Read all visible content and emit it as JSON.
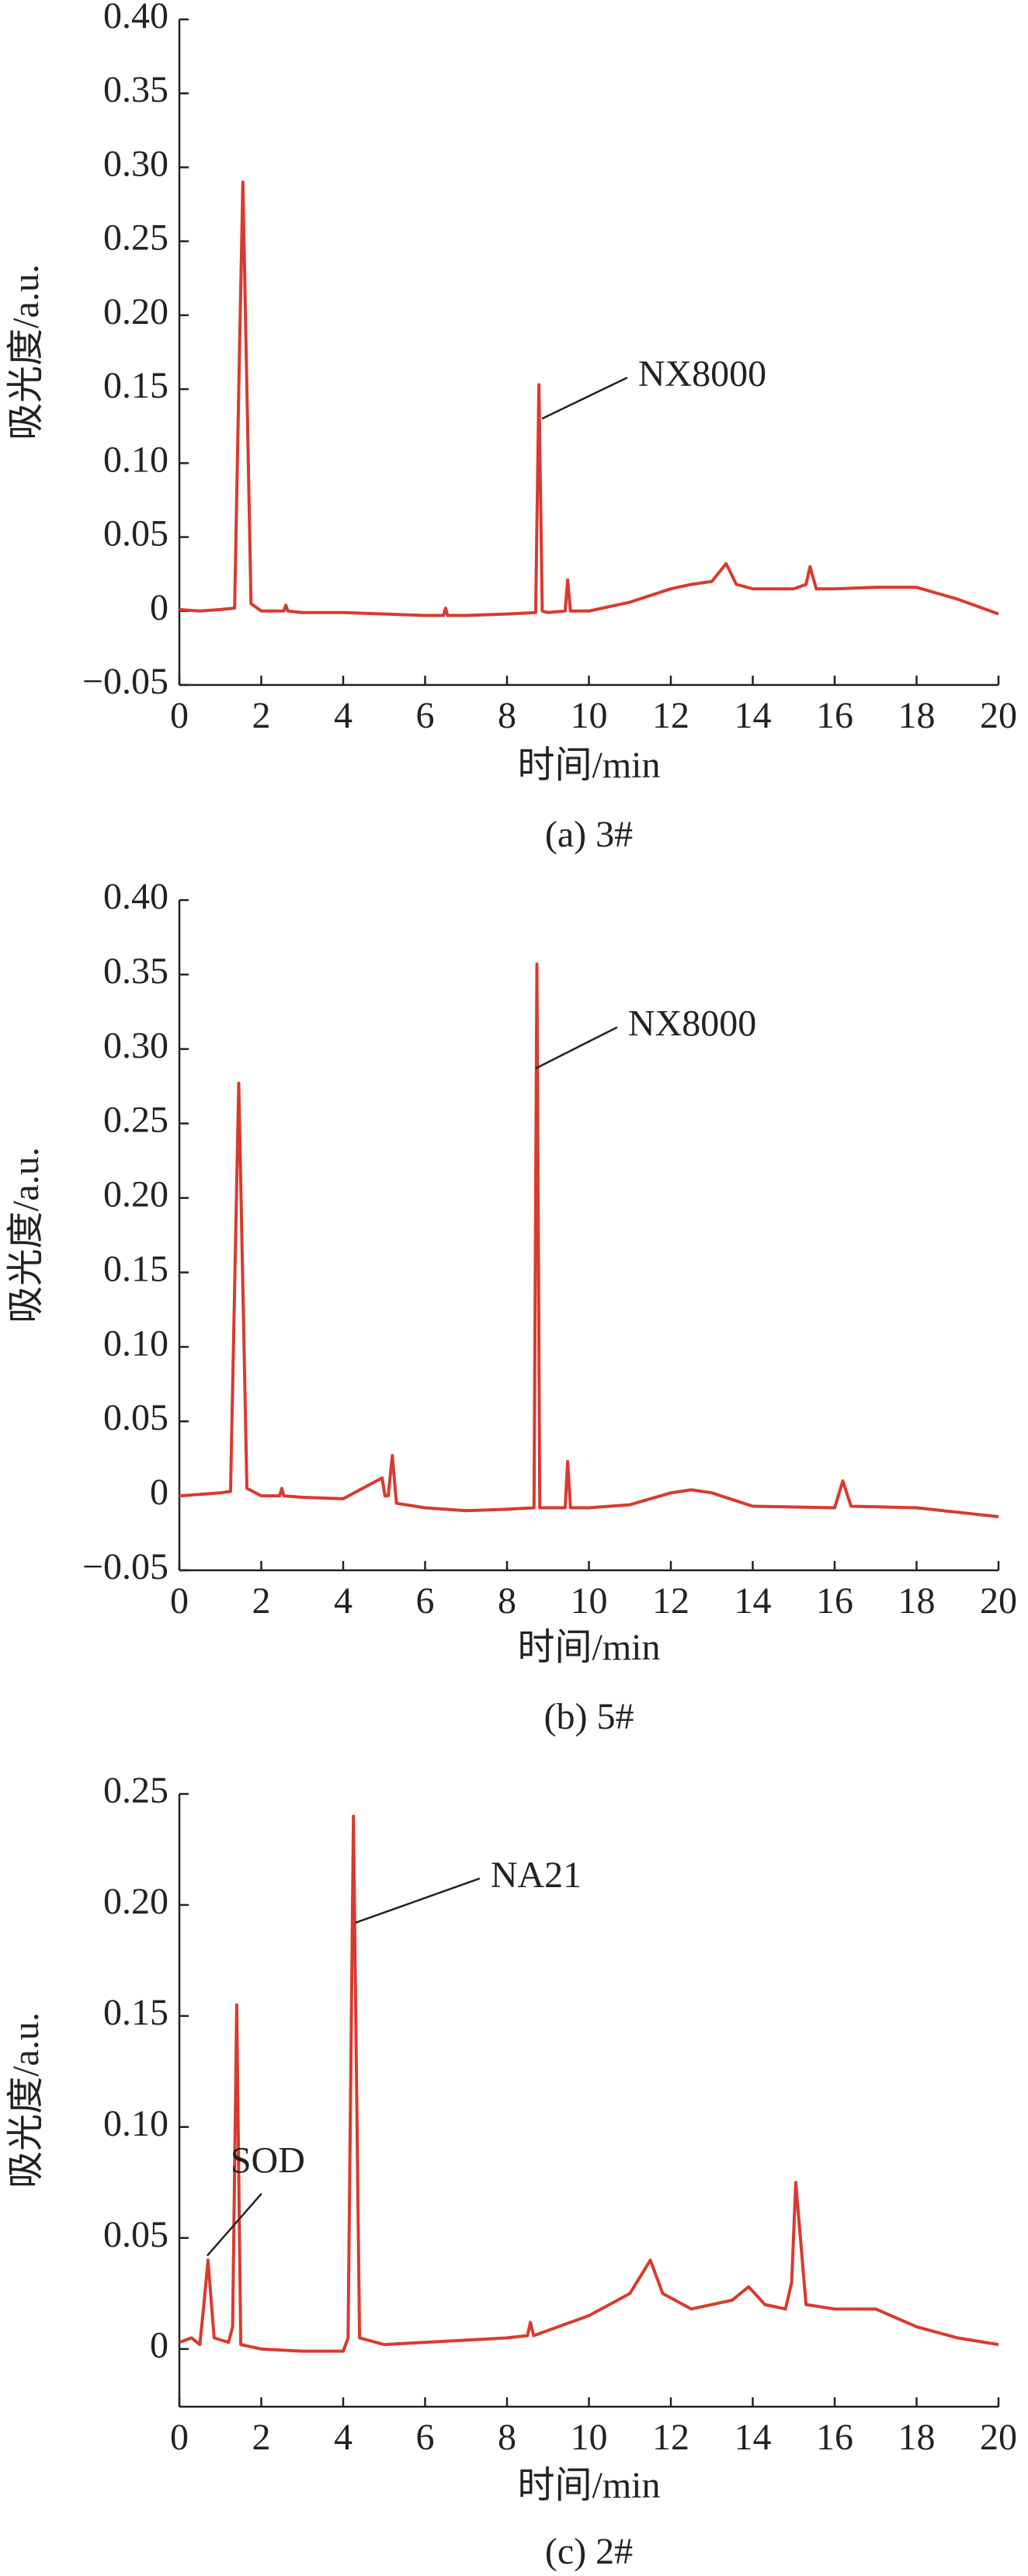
{
  "chart_data": [
    {
      "type": "line",
      "caption": "(a) 3#",
      "x_label": "时间/min",
      "y_label": "吸光度/a.u.",
      "color": "#d93a2f",
      "xlim": [
        0,
        20
      ],
      "xticks": [
        0,
        2,
        4,
        6,
        8,
        10,
        12,
        14,
        16,
        18,
        20
      ],
      "ylim": [
        -0.05,
        0.4
      ],
      "yticks": [
        {
          "value": -0.05,
          "label": "−0.05"
        },
        0,
        0.05,
        {
          "value": 0.1,
          "label": "0.10"
        },
        0.15,
        {
          "value": 0.2,
          "label": "0.20"
        },
        0.25,
        {
          "value": 0.3,
          "label": "0.30"
        },
        0.35,
        {
          "value": 0.4,
          "label": "0.40"
        }
      ],
      "x": [
        0,
        0.5,
        1,
        1.35,
        1.45,
        1.55,
        1.65,
        1.75,
        2,
        2.55,
        2.6,
        2.65,
        3,
        4,
        5,
        6,
        6.45,
        6.5,
        6.55,
        7,
        8,
        8.7,
        8.78,
        8.86,
        9,
        9.42,
        9.48,
        9.55,
        10,
        11,
        12,
        12.5,
        13,
        13.35,
        13.6,
        14,
        15,
        15.3,
        15.4,
        15.55,
        16,
        17,
        18,
        19,
        20
      ],
      "values": [
        0.001,
        0.0,
        0.001,
        0.002,
        0.15,
        0.29,
        0.15,
        0.005,
        0.0,
        0.0,
        0.004,
        0.0,
        -0.001,
        -0.001,
        -0.002,
        -0.003,
        -0.003,
        0.002,
        -0.003,
        -0.003,
        -0.002,
        -0.001,
        0.153,
        0.0,
        -0.001,
        0.0,
        0.021,
        0.0,
        0.0,
        0.006,
        0.015,
        0.018,
        0.02,
        0.032,
        0.018,
        0.015,
        0.015,
        0.018,
        0.03,
        0.015,
        0.015,
        0.016,
        0.016,
        0.008,
        -0.002
      ],
      "annotations": [
        {
          "text": "NX8000",
          "x": 8.85,
          "y": 0.13
        }
      ]
    },
    {
      "type": "line",
      "caption": "(b) 5#",
      "x_label": "时间/min",
      "y_label": "吸光度/a.u.",
      "color": "#d93a2f",
      "xlim": [
        0,
        20
      ],
      "xticks": [
        0,
        2,
        4,
        6,
        8,
        10,
        12,
        14,
        16,
        18,
        20
      ],
      "ylim": [
        -0.05,
        0.4
      ],
      "yticks": [
        {
          "value": -0.05,
          "label": "−0.05"
        },
        0,
        0.05,
        {
          "value": 0.1,
          "label": "0.10"
        },
        0.15,
        {
          "value": 0.2,
          "label": "0.20"
        },
        0.25,
        {
          "value": 0.3,
          "label": "0.30"
        },
        0.35,
        {
          "value": 0.4,
          "label": "0.40"
        }
      ],
      "x": [
        0,
        0.5,
        1,
        1.25,
        1.35,
        1.45,
        1.55,
        1.65,
        2,
        2.45,
        2.5,
        2.55,
        3,
        4,
        4.95,
        5.02,
        5.1,
        5.2,
        5.3,
        6,
        7,
        8,
        8.66,
        8.73,
        8.8,
        9,
        9.42,
        9.48,
        9.55,
        10,
        11,
        12,
        12.5,
        13,
        14,
        16,
        16.2,
        16.4,
        18,
        20
      ],
      "values": [
        0.0,
        0.001,
        0.002,
        0.003,
        0.14,
        0.277,
        0.14,
        0.005,
        0.0,
        0.0,
        0.005,
        0.0,
        -0.001,
        -0.002,
        0.012,
        0.0,
        0.0,
        0.027,
        -0.005,
        -0.008,
        -0.01,
        -0.009,
        -0.008,
        0.357,
        -0.008,
        -0.008,
        -0.008,
        0.023,
        -0.008,
        -0.008,
        -0.006,
        0.002,
        0.004,
        0.002,
        -0.007,
        -0.008,
        0.01,
        -0.007,
        -0.008,
        -0.014
      ],
      "annotations": [
        {
          "text": "NX8000",
          "x": 8.7,
          "y": 0.287
        }
      ]
    },
    {
      "type": "line",
      "caption": "(c) 2#",
      "x_label": "时间/min",
      "y_label": "吸光度/a.u.",
      "color": "#d93a2f",
      "xlim": [
        0,
        20
      ],
      "xticks": [
        0,
        2,
        4,
        6,
        8,
        10,
        12,
        14,
        16,
        18,
        20
      ],
      "ylim": [
        -0.026,
        0.25
      ],
      "yticks": [
        0,
        0.05,
        {
          "value": 0.1,
          "label": "0.10"
        },
        0.15,
        {
          "value": 0.2,
          "label": "0.20"
        },
        0.25
      ],
      "x": [
        0,
        0.3,
        0.5,
        0.6,
        0.7,
        0.85,
        1.2,
        1.3,
        1.4,
        1.5,
        2,
        3,
        4,
        4.12,
        4.25,
        4.4,
        5,
        6,
        8,
        8.5,
        8.57,
        8.65,
        10,
        11,
        11.5,
        11.8,
        12.5,
        13.5,
        13.9,
        14.3,
        14.8,
        14.95,
        15.05,
        15.3,
        16,
        17,
        18,
        19,
        20
      ],
      "values": [
        0.003,
        0.005,
        0.002,
        0.02,
        0.04,
        0.005,
        0.003,
        0.01,
        0.155,
        0.002,
        0.0,
        -0.001,
        -0.001,
        0.005,
        0.24,
        0.005,
        0.002,
        0.003,
        0.005,
        0.006,
        0.012,
        0.006,
        0.015,
        0.025,
        0.04,
        0.025,
        0.018,
        0.022,
        0.028,
        0.02,
        0.018,
        0.03,
        0.075,
        0.02,
        0.018,
        0.018,
        0.01,
        0.005,
        0.002
      ],
      "annotations": [
        {
          "text": "NA21",
          "x": 4.3,
          "y": 0.192
        },
        {
          "text": "SOD",
          "x": 0.68,
          "y": 0.042
        }
      ]
    }
  ]
}
